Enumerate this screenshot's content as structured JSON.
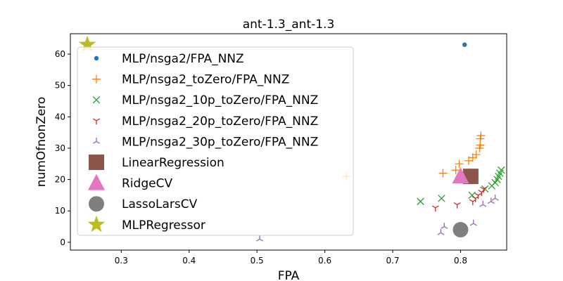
{
  "chart_data": {
    "type": "scatter",
    "title": "ant-1.3_ant-1.3",
    "xlabel": "FPA",
    "ylabel": "numOfnonZero",
    "xlim": [
      0.225,
      0.868
    ],
    "ylim": [
      -2.5,
      66.5
    ],
    "xticks": [
      0.3,
      0.4,
      0.5,
      0.6,
      0.7,
      0.8
    ],
    "xtick_labels": [
      "0.3",
      "0.4",
      "0.5",
      "0.6",
      "0.7",
      "0.8"
    ],
    "yticks": [
      0,
      10,
      20,
      30,
      40,
      50,
      60
    ],
    "ytick_labels": [
      "0",
      "10",
      "20",
      "30",
      "40",
      "50",
      "60"
    ],
    "legend_position": "upper-left",
    "series": [
      {
        "name": "MLP/nsga2/FPA_NNZ",
        "marker": "dot",
        "color": "#1f77b4",
        "points": [
          [
            0.806,
            63
          ]
        ]
      },
      {
        "name": "MLP/nsga2_toZero/FPA_NNZ",
        "marker": "plus",
        "color": "#ff7f0e",
        "points": [
          [
            0.632,
            21
          ],
          [
            0.774,
            22
          ],
          [
            0.793,
            23
          ],
          [
            0.798,
            25
          ],
          [
            0.812,
            26
          ],
          [
            0.818,
            27
          ],
          [
            0.823,
            28
          ],
          [
            0.828,
            30
          ],
          [
            0.829,
            31
          ],
          [
            0.829,
            33
          ],
          [
            0.83,
            34
          ]
        ]
      },
      {
        "name": "MLP/nsga2_10p_toZero/FPA_NNZ",
        "marker": "x",
        "color": "#2ca02c",
        "points": [
          [
            0.741,
            13
          ],
          [
            0.772,
            14
          ],
          [
            0.817,
            15
          ],
          [
            0.836,
            17
          ],
          [
            0.846,
            18
          ],
          [
            0.851,
            19
          ],
          [
            0.854,
            20
          ],
          [
            0.856,
            21
          ],
          [
            0.858,
            22
          ],
          [
            0.86,
            23
          ]
        ]
      },
      {
        "name": "MLP/nsga2_20p_toZero/FPA_NNZ",
        "marker": "tri_down",
        "color": "#d62728",
        "points": [
          [
            0.763,
            11
          ],
          [
            0.795,
            12
          ],
          [
            0.818,
            13
          ],
          [
            0.822,
            14
          ],
          [
            0.826,
            15
          ],
          [
            0.831,
            16
          ],
          [
            0.834,
            17
          ]
        ]
      },
      {
        "name": "MLP/nsga2_30p_toZero/FPA_NNZ",
        "marker": "tri_up",
        "color": "#9467bd",
        "points": [
          [
            0.504,
            1
          ],
          [
            0.771,
            3
          ],
          [
            0.776,
            5
          ],
          [
            0.819,
            6
          ],
          [
            0.833,
            12
          ],
          [
            0.845,
            13
          ],
          [
            0.851,
            14
          ]
        ]
      },
      {
        "name": "LinearRegression",
        "marker": "square",
        "color": "#8c564b",
        "points": [
          [
            0.815,
            21
          ]
        ]
      },
      {
        "name": "RidgeCV",
        "marker": "triangle",
        "color": "#e377c2",
        "points": [
          [
            0.8,
            21
          ]
        ]
      },
      {
        "name": "LassoLarsCV",
        "marker": "circle",
        "color": "#7f7f7f",
        "points": [
          [
            0.8,
            4
          ]
        ]
      },
      {
        "name": "MLPRegressor",
        "marker": "star",
        "color": "#bcbd22",
        "points": [
          [
            0.25,
            63
          ]
        ]
      }
    ]
  }
}
